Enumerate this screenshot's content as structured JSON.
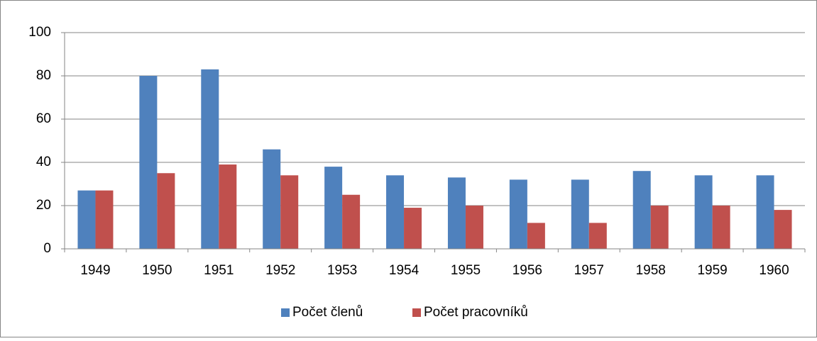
{
  "chart_data": {
    "type": "bar",
    "categories": [
      "1949",
      "1950",
      "1951",
      "1952",
      "1953",
      "1954",
      "1955",
      "1956",
      "1957",
      "1958",
      "1959",
      "1960"
    ],
    "series": [
      {
        "name": "Počet členů",
        "color": "#4f81bd",
        "values": [
          27,
          80,
          83,
          46,
          38,
          34,
          33,
          32,
          32,
          36,
          34,
          34
        ]
      },
      {
        "name": "Počet pracovníků",
        "color": "#c0504d",
        "values": [
          27,
          35,
          39,
          34,
          25,
          19,
          20,
          12,
          12,
          20,
          20,
          18
        ]
      }
    ],
    "ylim": [
      0,
      100
    ],
    "yticks": [
      0,
      20,
      40,
      60,
      80,
      100
    ],
    "grid": true,
    "legend": "bottom"
  }
}
